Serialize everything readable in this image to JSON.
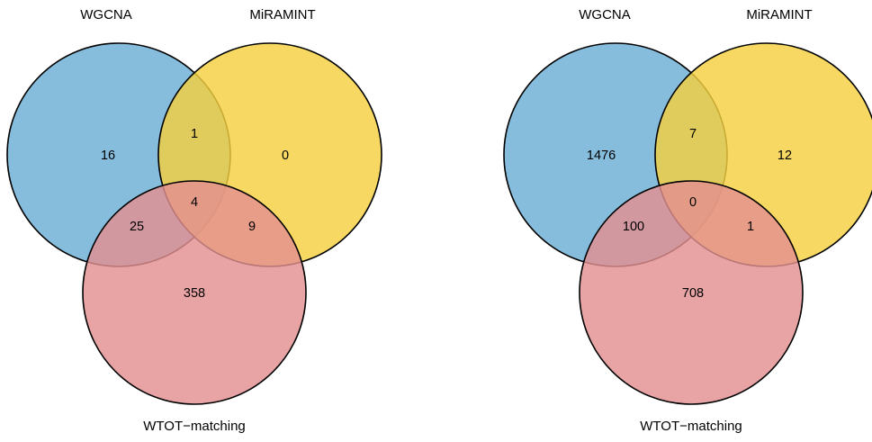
{
  "diagrams": [
    {
      "sets": [
        {
          "key": "A",
          "label": "WGCNA",
          "color": "#6BAED6"
        },
        {
          "key": "B",
          "label": "MiRAMINT",
          "color": "#F4D03F"
        },
        {
          "key": "C",
          "label": "WTOT−matching",
          "color": "#E39091"
        }
      ],
      "regions": {
        "A": "16",
        "B": "0",
        "C": "358",
        "AB": "1",
        "AC": "25",
        "BC": "9",
        "ABC": "4"
      }
    },
    {
      "sets": [
        {
          "key": "A",
          "label": "WGCNA",
          "color": "#6BAED6"
        },
        {
          "key": "B",
          "label": "MiRAMINT",
          "color": "#F4D03F"
        },
        {
          "key": "C",
          "label": "WTOT−matching",
          "color": "#E39091"
        }
      ],
      "regions": {
        "A": "1476",
        "B": "12",
        "C": "708",
        "AB": "7",
        "AC": "100",
        "BC": "1",
        "ABC": "0"
      }
    }
  ]
}
